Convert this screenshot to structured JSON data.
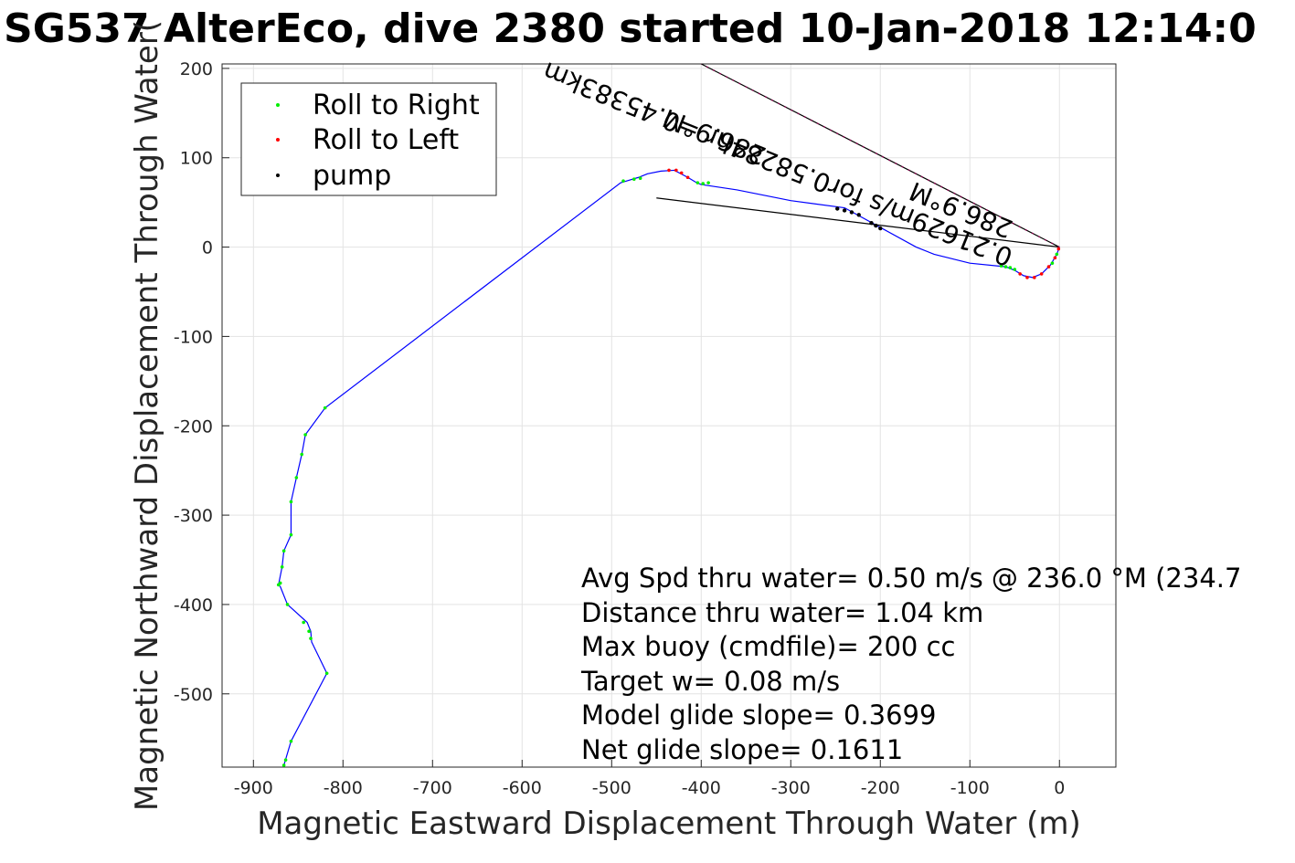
{
  "chart_data": {
    "type": "line",
    "title": "SG537 AlterEco, dive 2380 started 10-Jan-2018 12:14:0",
    "xlabel": "Magnetic Eastward Displacement Through Water (m)",
    "ylabel": "Magnetic Northward Displacement Through Water(",
    "xlim": [
      -935,
      63
    ],
    "ylim": [
      -582,
      205
    ],
    "xticks": [
      -900,
      -800,
      -700,
      -600,
      -500,
      -400,
      -300,
      -200,
      -100,
      0
    ],
    "yticks": [
      200,
      100,
      0,
      -100,
      -200,
      -300,
      -400,
      -500
    ],
    "grid": true,
    "legend_position": "top-left",
    "colors": {
      "track": "#0000ff",
      "roll_right": "#00ee00",
      "roll_left": "#ff0000",
      "pump": "#000000",
      "mixed_marker": "#b0005f"
    },
    "series": [
      {
        "name": "track",
        "points": [
          [
            0,
            0
          ],
          [
            -3,
            -8
          ],
          [
            -10,
            -20
          ],
          [
            -20,
            -30
          ],
          [
            -30,
            -34
          ],
          [
            -40,
            -32
          ],
          [
            -50,
            -26
          ],
          [
            -60,
            -22
          ],
          [
            -100,
            -18
          ],
          [
            -140,
            -8
          ],
          [
            -160,
            0
          ],
          [
            -200,
            22
          ],
          [
            -240,
            44
          ],
          [
            -300,
            52
          ],
          [
            -360,
            64
          ],
          [
            -400,
            70
          ],
          [
            -405,
            72
          ],
          [
            -415,
            78
          ],
          [
            -430,
            86
          ],
          [
            -445,
            85
          ],
          [
            -460,
            82
          ],
          [
            -470,
            78
          ],
          [
            -480,
            75
          ],
          [
            -490,
            72
          ],
          [
            -820,
            -180
          ],
          [
            -842,
            -210
          ],
          [
            -846,
            -232
          ],
          [
            -852,
            -258
          ],
          [
            -858,
            -285
          ],
          [
            -858,
            -322
          ],
          [
            -866,
            -340
          ],
          [
            -868,
            -358
          ],
          [
            -872,
            -378
          ],
          [
            -870,
            -380
          ],
          [
            -862,
            -400
          ],
          [
            -840,
            -420
          ],
          [
            -836,
            -430
          ],
          [
            -835,
            -442
          ],
          [
            -818,
            -477
          ],
          [
            -858,
            -553
          ],
          [
            -866,
            -580
          ]
        ]
      },
      {
        "name": "Roll to Right",
        "points": [
          [
            -3,
            -8
          ],
          [
            -8,
            -18
          ],
          [
            -50,
            -25
          ],
          [
            -55,
            -23
          ],
          [
            -60,
            -22
          ],
          [
            -65,
            -21
          ],
          [
            -392,
            72
          ],
          [
            -398,
            71
          ],
          [
            -404,
            72
          ],
          [
            -468,
            77
          ],
          [
            -475,
            76
          ],
          [
            -487,
            74
          ],
          [
            -820,
            -180
          ],
          [
            -842,
            -210
          ],
          [
            -846,
            -232
          ],
          [
            -852,
            -258
          ],
          [
            -858,
            -285
          ],
          [
            -858,
            -322
          ],
          [
            -866,
            -340
          ],
          [
            -868,
            -358
          ],
          [
            -872,
            -378
          ],
          [
            -870,
            -376
          ],
          [
            -862,
            -400
          ],
          [
            -844,
            -420
          ],
          [
            -838,
            -430
          ],
          [
            -836,
            -438
          ],
          [
            -818,
            -477
          ],
          [
            -858,
            -553
          ],
          [
            -864,
            -574
          ],
          [
            -866,
            -580
          ]
        ]
      },
      {
        "name": "Roll to Left",
        "points": [
          [
            -1,
            -2
          ],
          [
            -5,
            -12
          ],
          [
            -12,
            -22
          ],
          [
            -20,
            -30
          ],
          [
            -28,
            -34
          ],
          [
            -36,
            -34
          ],
          [
            -44,
            -30
          ],
          [
            -415,
            78
          ],
          [
            -422,
            83
          ],
          [
            -428,
            86
          ],
          [
            -436,
            86
          ]
        ]
      },
      {
        "name": "pump",
        "points": [
          [
            -248,
            43
          ],
          [
            -240,
            41
          ],
          [
            -232,
            39
          ],
          [
            -224,
            36
          ],
          [
            -210,
            27
          ],
          [
            -205,
            24
          ],
          [
            -200,
            21
          ]
        ]
      },
      {
        "name": "current-vector-1",
        "points": [
          [
            0,
            0
          ],
          [
            -400,
            205
          ]
        ]
      },
      {
        "name": "current-vector-2",
        "points": [
          [
            0,
            0
          ],
          [
            -450,
            55
          ]
        ]
      }
    ],
    "annotations": [
      {
        "text": "0.21629m/s for0.58284hr =0.45383km",
        "angle_deg": 22
      },
      {
        "text": "286.9°M",
        "angle_deg": 22
      },
      {
        "text": "286.9°M",
        "angle_deg": 22
      }
    ],
    "legend": [
      {
        "label": "Roll to Right",
        "color": "#00ee00"
      },
      {
        "label": "Roll to Left",
        "color": "#ff0000"
      },
      {
        "label": "pump",
        "color": "#000000"
      }
    ],
    "stats": [
      "Avg Spd thru water=  0.50 m/s @ 236.0 °M (234.7",
      "Distance thru water=  1.04 km",
      "Max buoy (cmdfile)= 200 cc",
      "Target w= 0.08 m/s",
      "Model glide slope= 0.3699",
      "Net glide slope= 0.1611"
    ]
  }
}
